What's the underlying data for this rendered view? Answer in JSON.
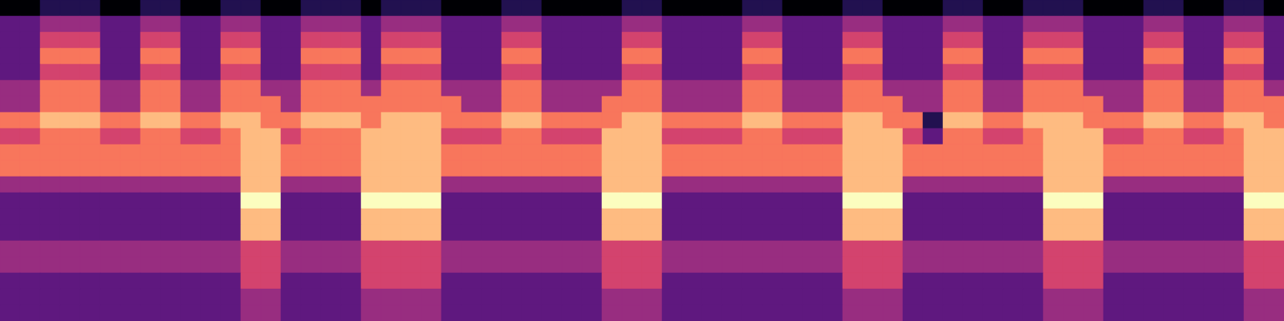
{
  "chart_data": {
    "type": "heatmap",
    "color": "magma",
    "tick_labels": false,
    "cells": [
      [
        1,
        1,
        2,
        2,
        2,
        1,
        1,
        2,
        2,
        1,
        1,
        2,
        2,
        1,
        1,
        2,
        2,
        2,
        1,
        2,
        2,
        2,
        1,
        1,
        1,
        2,
        2,
        1,
        1,
        1,
        1,
        2,
        2,
        1,
        1,
        1,
        1,
        2,
        2,
        1,
        1,
        1,
        2,
        2,
        1,
        1,
        1,
        2,
        2,
        1,
        1,
        2,
        2,
        2,
        1,
        1,
        1,
        2,
        2,
        1,
        1,
        2,
        2,
        1
      ],
      [
        3,
        3,
        4,
        4,
        4,
        3,
        3,
        4,
        4,
        3,
        3,
        4,
        4,
        3,
        3,
        4,
        4,
        4,
        3,
        4,
        4,
        4,
        3,
        3,
        3,
        4,
        4,
        3,
        3,
        3,
        3,
        4,
        4,
        3,
        3,
        3,
        3,
        4,
        4,
        3,
        3,
        3,
        4,
        4,
        3,
        3,
        3,
        4,
        4,
        3,
        3,
        4,
        4,
        4,
        3,
        3,
        3,
        4,
        4,
        3,
        3,
        4,
        4,
        3
      ],
      [
        3,
        3,
        5,
        5,
        5,
        3,
        3,
        5,
        5,
        3,
        3,
        5,
        5,
        3,
        3,
        5,
        5,
        5,
        3,
        5,
        5,
        5,
        3,
        3,
        3,
        5,
        5,
        3,
        3,
        3,
        3,
        5,
        5,
        3,
        3,
        3,
        3,
        5,
        5,
        3,
        3,
        3,
        5,
        5,
        3,
        3,
        3,
        5,
        5,
        3,
        3,
        5,
        5,
        5,
        3,
        3,
        3,
        5,
        5,
        3,
        3,
        5,
        5,
        3
      ],
      [
        3,
        3,
        6,
        6,
        6,
        3,
        3,
        6,
        6,
        3,
        3,
        6,
        6,
        3,
        3,
        6,
        6,
        6,
        3,
        6,
        6,
        6,
        3,
        3,
        3,
        6,
        6,
        3,
        3,
        3,
        3,
        6,
        6,
        3,
        3,
        3,
        3,
        6,
        6,
        3,
        3,
        3,
        6,
        6,
        3,
        3,
        3,
        6,
        6,
        3,
        3,
        6,
        6,
        6,
        3,
        3,
        3,
        6,
        6,
        3,
        3,
        6,
        6,
        3
      ],
      [
        3,
        3,
        5,
        5,
        5,
        3,
        3,
        5,
        5,
        3,
        3,
        5,
        5,
        3,
        3,
        5,
        5,
        5,
        3,
        5,
        5,
        5,
        3,
        3,
        3,
        5,
        5,
        3,
        3,
        3,
        3,
        5,
        5,
        3,
        3,
        3,
        3,
        5,
        5,
        3,
        3,
        3,
        5,
        5,
        3,
        3,
        3,
        5,
        5,
        3,
        3,
        5,
        5,
        5,
        3,
        3,
        3,
        5,
        5,
        3,
        3,
        5,
        5,
        3
      ],
      [
        4,
        4,
        6,
        6,
        6,
        4,
        4,
        6,
        6,
        4,
        4,
        6,
        6,
        4,
        4,
        6,
        6,
        6,
        4,
        6,
        6,
        6,
        4,
        4,
        4,
        6,
        6,
        4,
        4,
        4,
        4,
        6,
        6,
        4,
        4,
        4,
        4,
        6,
        6,
        4,
        4,
        4,
        6,
        6,
        4,
        4,
        4,
        6,
        6,
        4,
        4,
        6,
        6,
        6,
        4,
        4,
        4,
        6,
        6,
        4,
        4,
        6,
        6,
        4
      ],
      [
        4,
        4,
        6,
        6,
        6,
        4,
        4,
        6,
        6,
        4,
        4,
        6,
        6,
        6,
        4,
        6,
        6,
        6,
        6,
        6,
        6,
        6,
        6,
        4,
        4,
        6,
        6,
        4,
        4,
        4,
        6,
        6,
        6,
        4,
        4,
        4,
        4,
        6,
        6,
        4,
        4,
        4,
        6,
        6,
        6,
        4,
        4,
        6,
        6,
        4,
        4,
        6,
        6,
        6,
        6,
        4,
        4,
        6,
        6,
        4,
        4,
        6,
        6,
        6
      ],
      [
        6,
        6,
        7,
        7,
        7,
        6,
        6,
        7,
        7,
        6,
        6,
        7,
        7,
        6,
        6,
        7,
        7,
        7,
        6,
        7,
        7,
        7,
        6,
        6,
        6,
        7,
        7,
        6,
        6,
        6,
        6,
        7,
        7,
        6,
        6,
        6,
        6,
        7,
        7,
        6,
        6,
        6,
        7,
        7,
        6,
        6,
        2,
        7,
        7,
        6,
        6,
        7,
        7,
        7,
        6,
        6,
        6,
        7,
        7,
        6,
        6,
        7,
        7,
        6
      ],
      [
        5,
        5,
        6,
        6,
        6,
        5,
        5,
        6,
        6,
        5,
        5,
        6,
        7,
        7,
        5,
        6,
        6,
        6,
        7,
        7,
        7,
        7,
        5,
        5,
        5,
        6,
        6,
        5,
        5,
        5,
        7,
        7,
        7,
        5,
        5,
        5,
        5,
        6,
        6,
        5,
        5,
        5,
        7,
        7,
        7,
        5,
        3,
        6,
        6,
        5,
        5,
        6,
        7,
        7,
        7,
        5,
        5,
        6,
        6,
        5,
        5,
        6,
        7,
        7
      ],
      [
        6,
        6,
        6,
        6,
        6,
        6,
        6,
        6,
        6,
        6,
        6,
        6,
        7,
        7,
        6,
        6,
        6,
        6,
        7,
        7,
        7,
        7,
        6,
        6,
        6,
        6,
        6,
        6,
        6,
        6,
        7,
        7,
        7,
        6,
        6,
        6,
        6,
        6,
        6,
        6,
        6,
        6,
        7,
        7,
        7,
        6,
        6,
        6,
        6,
        6,
        6,
        6,
        7,
        7,
        7,
        6,
        6,
        6,
        6,
        6,
        6,
        6,
        7,
        7
      ],
      [
        6,
        6,
        6,
        6,
        6,
        6,
        6,
        6,
        6,
        6,
        6,
        6,
        7,
        7,
        6,
        6,
        6,
        6,
        7,
        7,
        7,
        7,
        6,
        6,
        6,
        6,
        6,
        6,
        6,
        6,
        7,
        7,
        7,
        6,
        6,
        6,
        6,
        6,
        6,
        6,
        6,
        6,
        7,
        7,
        7,
        6,
        6,
        6,
        6,
        6,
        6,
        6,
        7,
        7,
        7,
        6,
        6,
        6,
        6,
        6,
        6,
        6,
        7,
        7
      ],
      [
        4,
        4,
        4,
        4,
        4,
        4,
        4,
        4,
        4,
        4,
        4,
        4,
        7,
        7,
        4,
        4,
        4,
        4,
        7,
        7,
        7,
        7,
        4,
        4,
        4,
        4,
        4,
        4,
        4,
        4,
        7,
        7,
        7,
        4,
        4,
        4,
        4,
        4,
        4,
        4,
        4,
        4,
        7,
        7,
        7,
        4,
        4,
        4,
        4,
        4,
        4,
        4,
        7,
        7,
        7,
        4,
        4,
        4,
        4,
        4,
        4,
        4,
        7,
        7
      ],
      [
        3,
        3,
        3,
        3,
        3,
        3,
        3,
        3,
        3,
        3,
        3,
        3,
        8,
        8,
        3,
        3,
        3,
        3,
        8,
        8,
        8,
        8,
        3,
        3,
        3,
        3,
        3,
        3,
        3,
        3,
        8,
        8,
        8,
        3,
        3,
        3,
        3,
        3,
        3,
        3,
        3,
        3,
        8,
        8,
        8,
        3,
        3,
        3,
        3,
        3,
        3,
        3,
        8,
        8,
        8,
        3,
        3,
        3,
        3,
        3,
        3,
        3,
        8,
        8
      ],
      [
        3,
        3,
        3,
        3,
        3,
        3,
        3,
        3,
        3,
        3,
        3,
        3,
        7,
        7,
        3,
        3,
        3,
        3,
        7,
        7,
        7,
        7,
        3,
        3,
        3,
        3,
        3,
        3,
        3,
        3,
        7,
        7,
        7,
        3,
        3,
        3,
        3,
        3,
        3,
        3,
        3,
        3,
        7,
        7,
        7,
        3,
        3,
        3,
        3,
        3,
        3,
        3,
        7,
        7,
        7,
        3,
        3,
        3,
        3,
        3,
        3,
        3,
        7,
        7
      ],
      [
        3,
        3,
        3,
        3,
        3,
        3,
        3,
        3,
        3,
        3,
        3,
        3,
        7,
        7,
        3,
        3,
        3,
        3,
        7,
        7,
        7,
        7,
        3,
        3,
        3,
        3,
        3,
        3,
        3,
        3,
        7,
        7,
        7,
        3,
        3,
        3,
        3,
        3,
        3,
        3,
        3,
        3,
        7,
        7,
        7,
        3,
        3,
        3,
        3,
        3,
        3,
        3,
        7,
        7,
        7,
        3,
        3,
        3,
        3,
        3,
        3,
        3,
        7,
        7
      ],
      [
        4,
        4,
        4,
        4,
        4,
        4,
        4,
        4,
        4,
        4,
        4,
        4,
        5,
        5,
        4,
        4,
        4,
        4,
        5,
        5,
        5,
        5,
        4,
        4,
        4,
        4,
        4,
        4,
        4,
        4,
        5,
        5,
        5,
        4,
        4,
        4,
        4,
        4,
        4,
        4,
        4,
        4,
        5,
        5,
        5,
        4,
        4,
        4,
        4,
        4,
        4,
        4,
        5,
        5,
        5,
        4,
        4,
        4,
        4,
        4,
        4,
        4,
        5,
        5
      ],
      [
        4,
        4,
        4,
        4,
        4,
        4,
        4,
        4,
        4,
        4,
        4,
        4,
        5,
        5,
        4,
        4,
        4,
        4,
        5,
        5,
        5,
        5,
        4,
        4,
        4,
        4,
        4,
        4,
        4,
        4,
        5,
        5,
        5,
        4,
        4,
        4,
        4,
        4,
        4,
        4,
        4,
        4,
        5,
        5,
        5,
        4,
        4,
        4,
        4,
        4,
        4,
        4,
        5,
        5,
        5,
        4,
        4,
        4,
        4,
        4,
        4,
        4,
        5,
        5
      ],
      [
        3,
        3,
        3,
        3,
        3,
        3,
        3,
        3,
        3,
        3,
        3,
        3,
        5,
        5,
        3,
        3,
        3,
        3,
        5,
        5,
        5,
        5,
        3,
        3,
        3,
        3,
        3,
        3,
        3,
        3,
        5,
        5,
        5,
        3,
        3,
        3,
        3,
        3,
        3,
        3,
        3,
        3,
        5,
        5,
        5,
        3,
        3,
        3,
        3,
        3,
        3,
        3,
        5,
        5,
        5,
        3,
        3,
        3,
        3,
        3,
        3,
        3,
        5,
        5
      ],
      [
        3,
        3,
        3,
        3,
        3,
        3,
        3,
        3,
        3,
        3,
        3,
        3,
        4,
        4,
        3,
        3,
        3,
        3,
        4,
        4,
        4,
        4,
        3,
        3,
        3,
        3,
        3,
        3,
        3,
        3,
        4,
        4,
        4,
        3,
        3,
        3,
        3,
        3,
        3,
        3,
        3,
        3,
        4,
        4,
        4,
        3,
        3,
        3,
        3,
        3,
        3,
        3,
        4,
        4,
        4,
        3,
        3,
        3,
        3,
        3,
        3,
        3,
        4,
        4
      ],
      [
        3,
        3,
        3,
        3,
        3,
        3,
        3,
        3,
        3,
        3,
        3,
        3,
        4,
        4,
        3,
        3,
        3,
        3,
        4,
        4,
        4,
        4,
        3,
        3,
        3,
        3,
        3,
        3,
        3,
        3,
        4,
        4,
        4,
        3,
        3,
        3,
        3,
        3,
        3,
        3,
        3,
        3,
        4,
        4,
        4,
        3,
        3,
        3,
        3,
        3,
        3,
        3,
        4,
        4,
        4,
        3,
        3,
        3,
        3,
        3,
        3,
        3,
        4,
        4
      ]
    ]
  }
}
